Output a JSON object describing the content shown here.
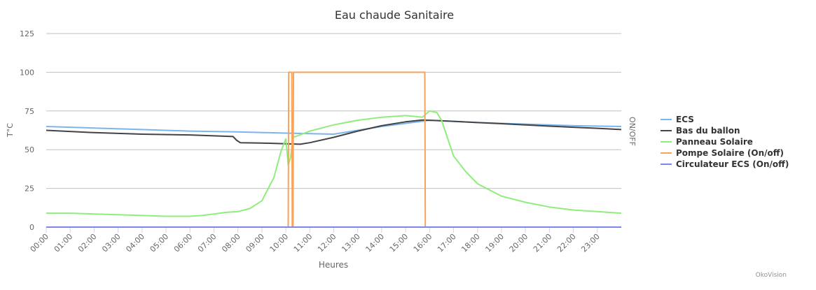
{
  "chart_data": {
    "type": "line",
    "title": "Eau chaude Sanitaire",
    "xlabel": "Heures",
    "ylabel": "T°C",
    "y2label": "ON/OFF",
    "ylim": [
      0,
      125
    ],
    "yticks": [
      "0",
      "25",
      "50",
      "75",
      "100",
      "125"
    ],
    "xlim": [
      0,
      24
    ],
    "xticks": [
      "00:00",
      "01:00",
      "02:00",
      "03:00",
      "04:00",
      "05:00",
      "06:00",
      "07:00",
      "08:00",
      "09:00",
      "10:00",
      "11:00",
      "12:00",
      "13:00",
      "14:00",
      "15:00",
      "16:00",
      "17:00",
      "18:00",
      "19:00",
      "20:00",
      "21:00",
      "22:00",
      "23:00"
    ],
    "grid": true,
    "legend_position": "right",
    "series": [
      {
        "name": "ECS",
        "color": "#7cb5ec",
        "x": [
          0,
          2,
          4,
          6,
          8,
          10,
          12,
          14,
          16,
          18,
          20,
          22,
          24
        ],
        "y": [
          65,
          64,
          63,
          62,
          61.5,
          60.7,
          60,
          65,
          69,
          67.5,
          66.5,
          65.5,
          65
        ]
      },
      {
        "name": "Bas du ballon",
        "color": "#434348",
        "x": [
          0,
          2,
          4,
          6,
          7.8,
          7.95,
          8.1,
          9,
          10,
          10.6,
          11,
          12,
          13,
          14,
          15,
          15.7,
          16.3,
          17,
          18,
          19,
          20,
          21,
          22,
          23,
          24
        ],
        "y": [
          62.5,
          61,
          60,
          59.5,
          58.5,
          56,
          54.5,
          54.3,
          53.8,
          53.5,
          54.5,
          58,
          62,
          65.5,
          68,
          69.2,
          68.8,
          68.3,
          67.5,
          66.8,
          66,
          65.2,
          64.5,
          63.8,
          63
        ]
      },
      {
        "name": "Panneau Solaire",
        "color": "#90ed7d",
        "x": [
          0,
          1,
          2,
          3,
          4,
          5,
          6,
          6.5,
          7,
          7.5,
          8,
          8.5,
          9,
          9.5,
          9.8,
          10,
          10.1,
          10.2,
          10.3,
          10.5,
          11,
          12,
          13,
          14,
          15,
          15.7,
          16,
          16.3,
          16.5,
          17,
          17.5,
          18,
          19,
          20,
          21,
          22,
          23,
          24
        ],
        "y": [
          9,
          9,
          8.5,
          8,
          7.5,
          7,
          7,
          7.5,
          8.5,
          9.5,
          10,
          12,
          17,
          32,
          49,
          57,
          40,
          45,
          58,
          59,
          62,
          66,
          69,
          71,
          72,
          71,
          75,
          74,
          69,
          46,
          36,
          28,
          20,
          16,
          13,
          11,
          10,
          9
        ]
      },
      {
        "name": "Pompe Solaire (On/off)",
        "color": "#f7a35c",
        "x": [
          0,
          10.1,
          10.12,
          10.25,
          10.27,
          10.3,
          10.32,
          15.8,
          15.82,
          24
        ],
        "y": [
          0,
          0,
          100,
          100,
          0,
          0,
          100,
          100,
          0,
          0
        ]
      },
      {
        "name": "Circulateur ECS (On/off)",
        "color": "#8085e9",
        "x": [
          0,
          24
        ],
        "y": [
          0,
          0
        ]
      }
    ]
  },
  "credits": "OkoVision"
}
